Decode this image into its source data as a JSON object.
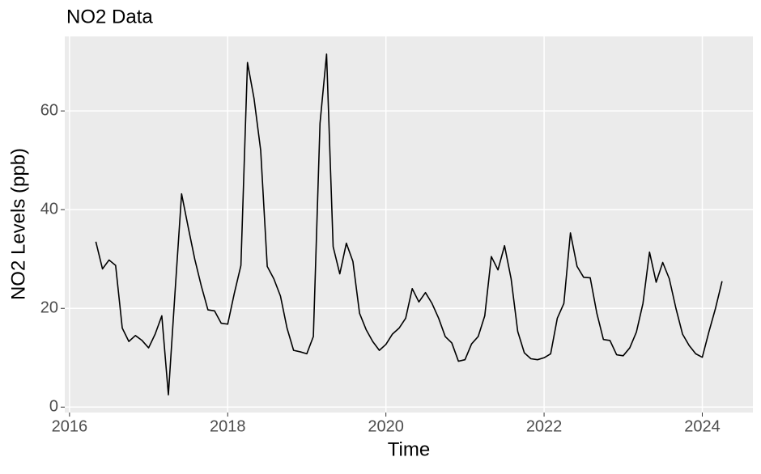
{
  "chart_data": {
    "type": "line",
    "title": "NO2 Data",
    "x_label": "Time",
    "y_label": "NO2 Levels (ppb)",
    "x": [
      2016.333,
      2016.417,
      2016.5,
      2016.583,
      2016.667,
      2016.75,
      2016.833,
      2016.917,
      2017.0,
      2017.083,
      2017.167,
      2017.25,
      2017.333,
      2017.417,
      2017.5,
      2017.583,
      2017.667,
      2017.75,
      2017.833,
      2017.917,
      2018.0,
      2018.083,
      2018.167,
      2018.25,
      2018.333,
      2018.417,
      2018.5,
      2018.583,
      2018.667,
      2018.75,
      2018.833,
      2018.917,
      2019.0,
      2019.083,
      2019.167,
      2019.25,
      2019.333,
      2019.417,
      2019.5,
      2019.583,
      2019.667,
      2019.75,
      2019.833,
      2019.917,
      2020.0,
      2020.083,
      2020.167,
      2020.25,
      2020.333,
      2020.417,
      2020.5,
      2020.583,
      2020.667,
      2020.75,
      2020.833,
      2020.917,
      2021.0,
      2021.083,
      2021.167,
      2021.25,
      2021.333,
      2021.417,
      2021.5,
      2021.583,
      2021.667,
      2021.75,
      2021.833,
      2021.917,
      2022.0,
      2022.083,
      2022.167,
      2022.25,
      2022.333,
      2022.417,
      2022.5,
      2022.583,
      2022.667,
      2022.75,
      2022.833,
      2022.917,
      2023.0,
      2023.083,
      2023.167,
      2023.25,
      2023.333,
      2023.417,
      2023.5,
      2023.583,
      2023.667,
      2023.75,
      2023.833,
      2023.917,
      2024.0,
      2024.083,
      2024.167,
      2024.25
    ],
    "series": [
      {
        "name": "NO2",
        "color": "#000000",
        "values": [
          33.5,
          28,
          29.8,
          28.7,
          16,
          13.3,
          14.5,
          13.5,
          12,
          14.8,
          18.5,
          2.5,
          23,
          43.2,
          36.5,
          30,
          24.5,
          19.7,
          19.5,
          17,
          16.8,
          23,
          28.7,
          69.8,
          62.5,
          52,
          28.5,
          26,
          22.5,
          16,
          11.5,
          11.2,
          10.8,
          14.3,
          57.5,
          71.5,
          32.5,
          27,
          33.2,
          29.5,
          19,
          15.7,
          13.3,
          11.5,
          12.7,
          14.8,
          16,
          18,
          24,
          21.3,
          23.2,
          21,
          18,
          14.3,
          13,
          9.3,
          9.6,
          12.8,
          14.3,
          18.5,
          30.5,
          27.8,
          32.7,
          26,
          15.3,
          11,
          9.8,
          9.6,
          10,
          10.8,
          18,
          21,
          35.3,
          28.5,
          26.3,
          26.2,
          19,
          13.7,
          13.5,
          10.6,
          10.4,
          12,
          15.2,
          21,
          31.4,
          25.3,
          29.3,
          26,
          20,
          14.8,
          12.5,
          10.8,
          10.1,
          15.2,
          20,
          25.5
        ]
      }
    ],
    "xlim": [
      2015.94,
      2024.64
    ],
    "xticks": [
      2016,
      2018,
      2020,
      2022,
      2024
    ],
    "ylim": [
      -1.1,
      75.1
    ],
    "yticks": [
      0,
      20,
      40,
      60
    ],
    "grid": true
  }
}
